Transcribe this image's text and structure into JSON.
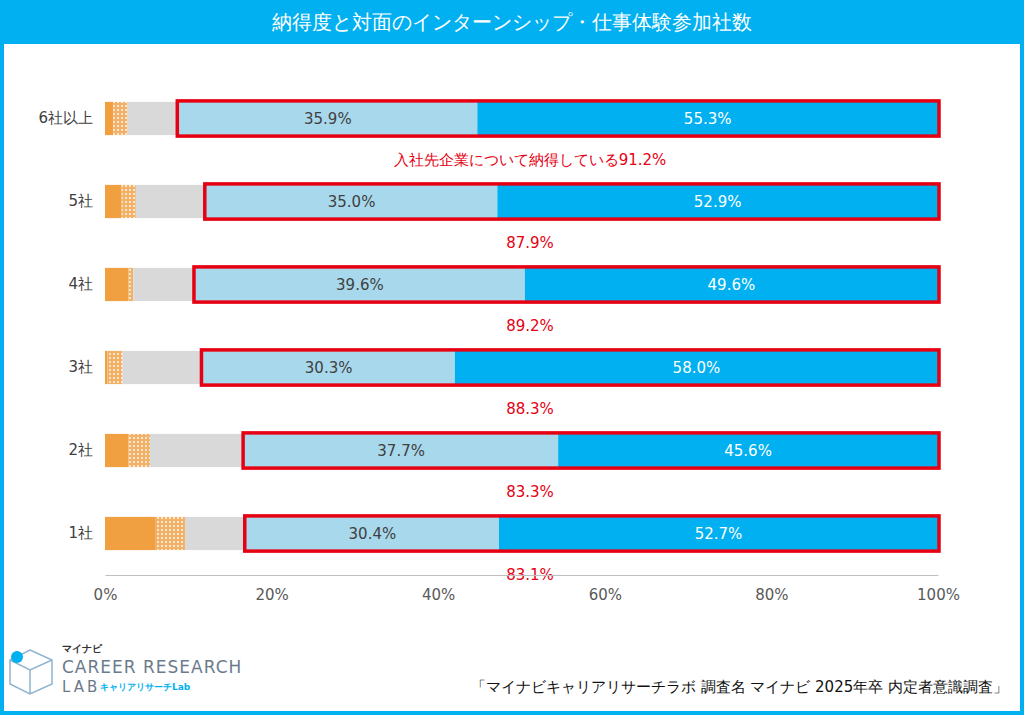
{
  "chart_data": {
    "type": "bar",
    "title": "納得度と対面のインターンシップ・仕事体験参加社数",
    "orientation": "horizontal",
    "stacked": true,
    "grid": false,
    "categories": [
      "6社以上",
      "5社",
      "4社",
      "3社",
      "2社",
      "1社"
    ],
    "series": [
      {
        "color": "#f0a040",
        "data_labels": false,
        "values": [
          1.0,
          2.0,
          2.8,
          0.3,
          2.8,
          6.1
        ]
      },
      {
        "color": "#f3b167",
        "marker": "dots",
        "data_labels": false,
        "values": [
          1.7,
          1.7,
          0.6,
          1.8,
          2.6,
          3.5
        ]
      },
      {
        "color": "#d9d9d9",
        "data_labels": false,
        "values": [
          6.1,
          8.4,
          7.4,
          9.6,
          11.3,
          7.3
        ]
      },
      {
        "color": "#a8d8ec",
        "data_labels": true,
        "values": [
          35.9,
          35.0,
          39.6,
          30.3,
          37.7,
          30.4
        ],
        "value_labels": [
          "35.9%",
          "35.0%",
          "39.6%",
          "30.3%",
          "37.7%",
          "30.4%"
        ]
      },
      {
        "color": "#00b0f0",
        "data_labels": true,
        "values": [
          55.3,
          52.9,
          49.6,
          58.0,
          45.6,
          52.7
        ],
        "value_labels": [
          "55.3%",
          "52.9%",
          "49.6%",
          "58.0%",
          "45.6%",
          "52.7%"
        ]
      }
    ],
    "annotations": [
      "入社先企業について納得している91.2%",
      "87.9%",
      "89.2%",
      "88.3%",
      "83.3%",
      "83.1%"
    ],
    "xlim": [
      0,
      100
    ],
    "xticks": [
      {
        "value": 0,
        "label": "0%"
      },
      {
        "value": 20,
        "label": "20%"
      },
      {
        "value": 40,
        "label": "40%"
      },
      {
        "value": 60,
        "label": "60%"
      },
      {
        "value": 80,
        "label": "80%"
      },
      {
        "value": 100,
        "label": "100%"
      }
    ]
  },
  "footer": {
    "logo": [
      "マイナビ",
      "CAREER RESEARCH",
      "LAB",
      "キャリアリサーチLab"
    ],
    "source": "「マイナビキャリアリサーチラボ 調査名 マイナビ 2025年卒 内定者意識調査」"
  }
}
